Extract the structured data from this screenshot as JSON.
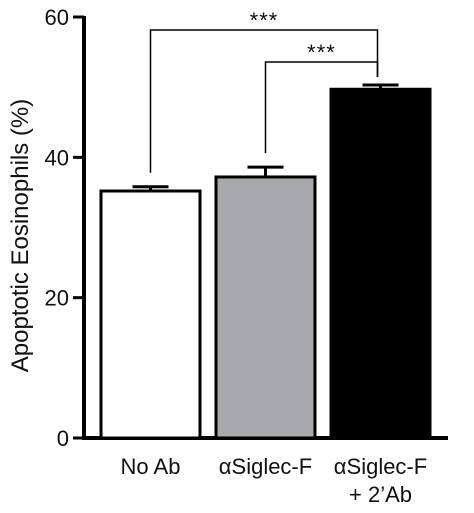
{
  "chart_data": {
    "type": "bar",
    "title": "",
    "xlabel": "",
    "ylabel": "Apoptotic Eosinophils (%)",
    "ylim": [
      0,
      60
    ],
    "yticks": [
      0,
      20,
      40,
      60
    ],
    "grid": false,
    "categories": [
      [
        "No Ab"
      ],
      [
        "αSiglec-F"
      ],
      [
        "αSiglec-F",
        "+ 2’Ab"
      ]
    ],
    "values": [
      35.2,
      37.2,
      49.7
    ],
    "errors": [
      0.6,
      1.4,
      0.6
    ],
    "bar_colors": [
      "#ffffff",
      "#a8a9ad",
      "#000000"
    ],
    "significance": [
      {
        "from": 0,
        "to": 2,
        "label": "***"
      },
      {
        "from": 1,
        "to": 2,
        "label": "***"
      }
    ]
  }
}
